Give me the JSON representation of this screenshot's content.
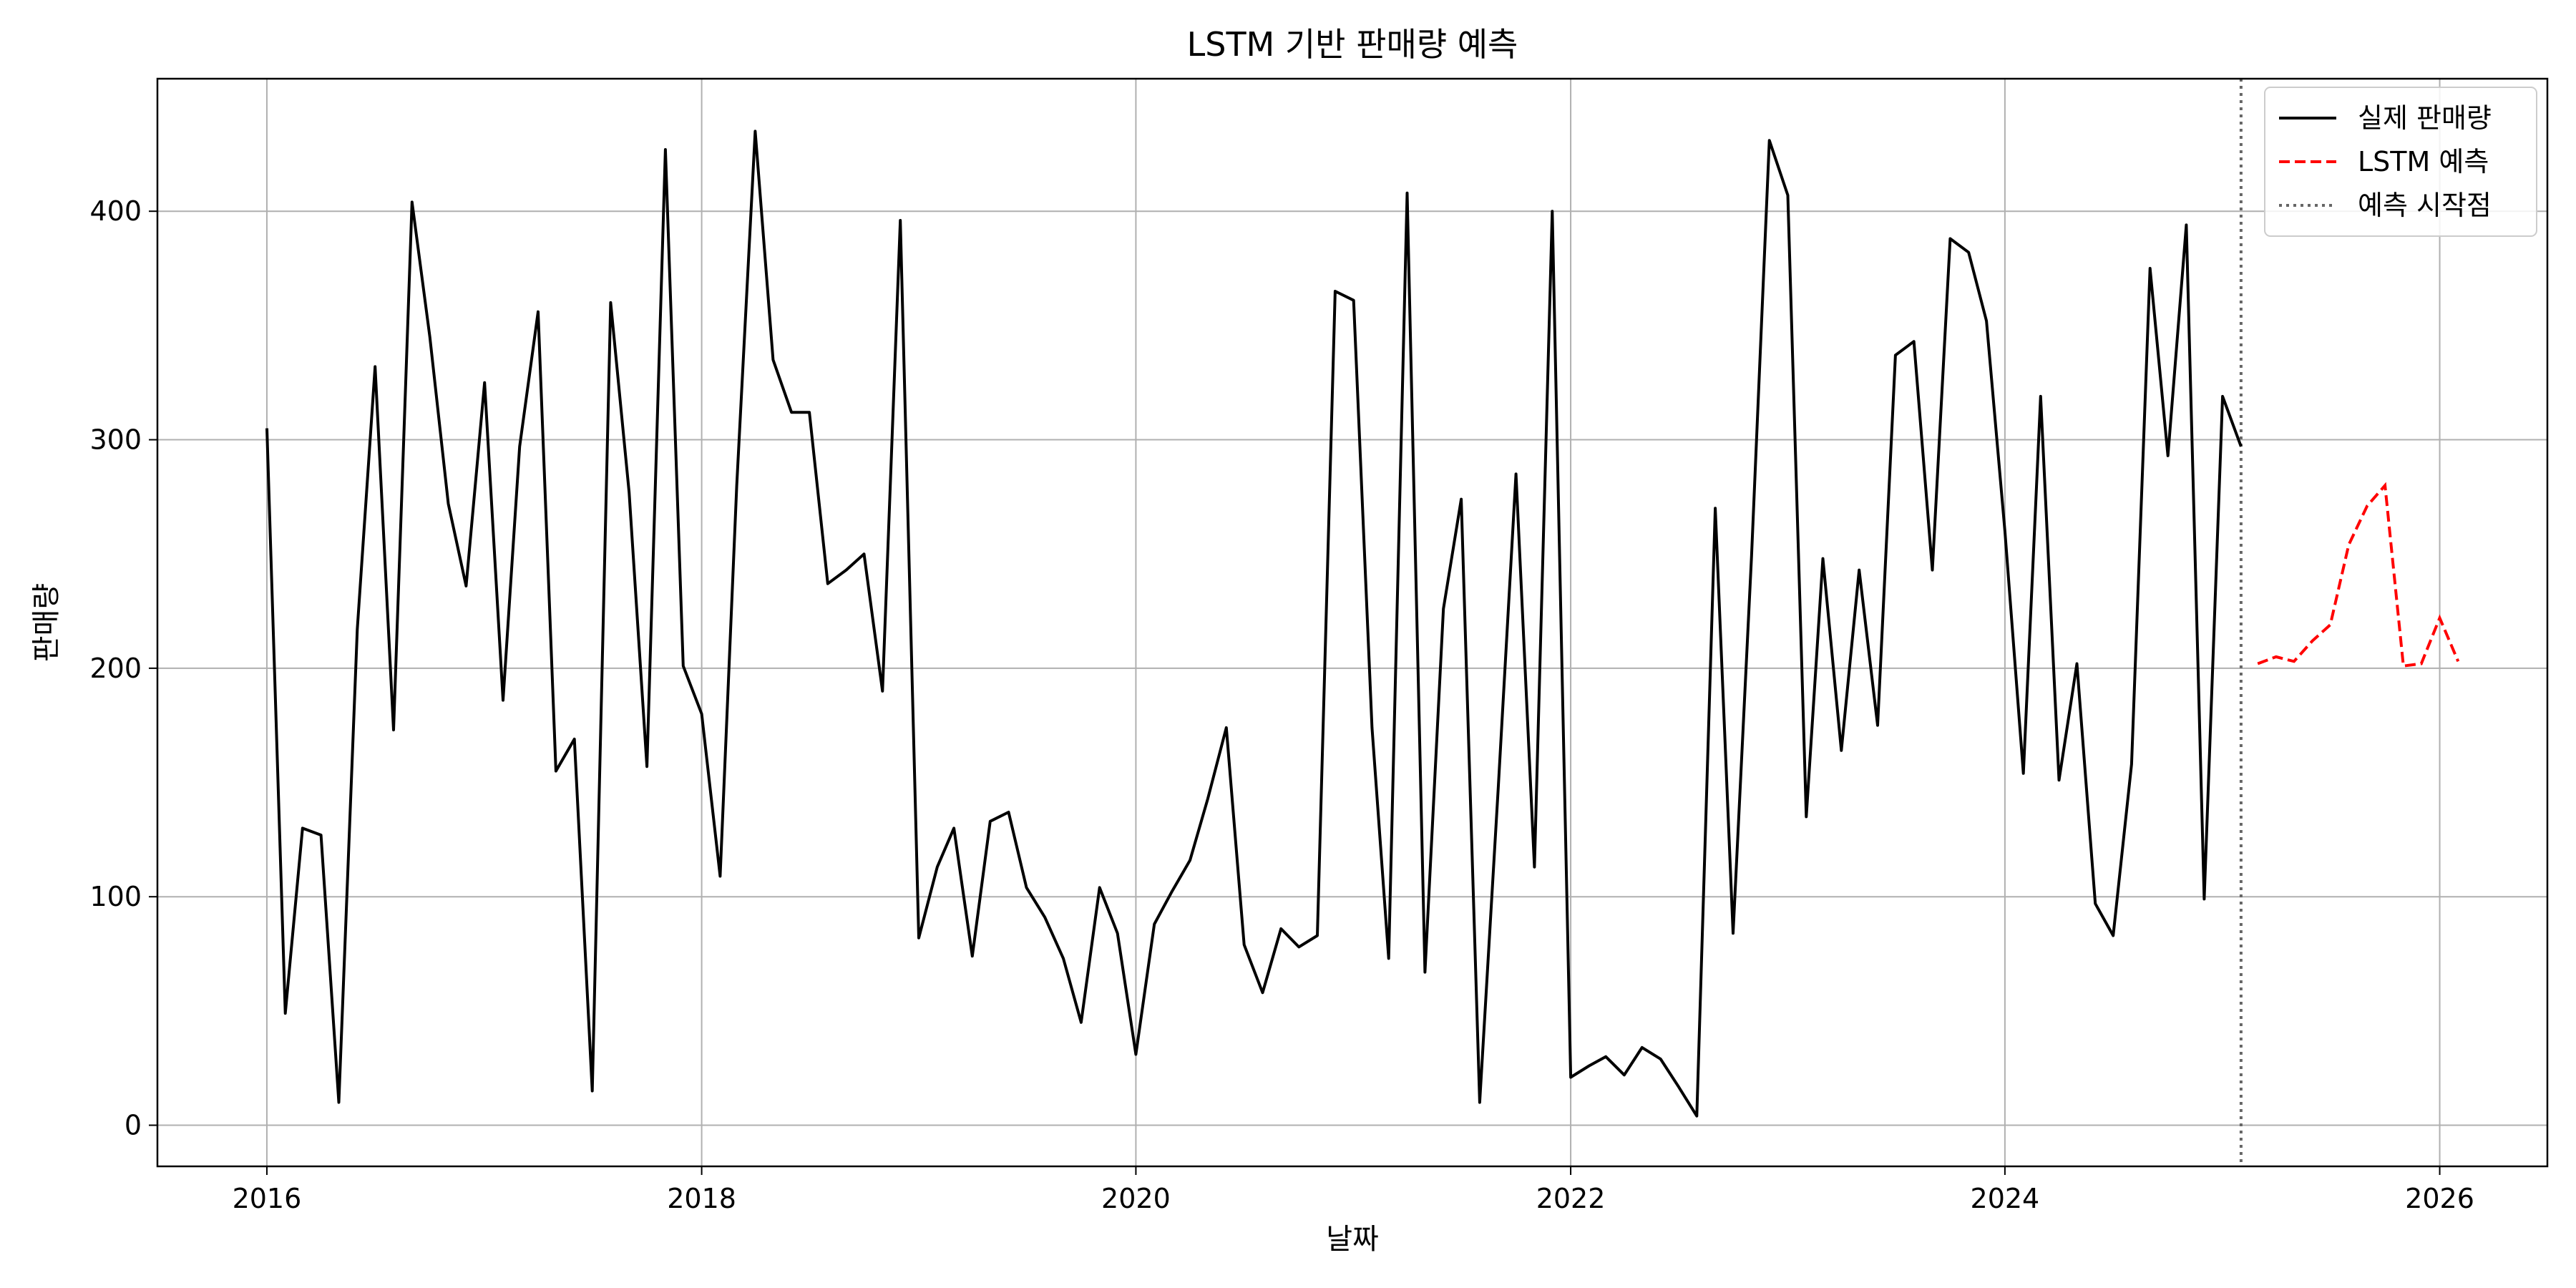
{
  "chart_data": {
    "type": "line",
    "title": "LSTM 기반 판매량 예측",
    "xlabel": "날짜",
    "ylabel": "판매량",
    "xlim": [
      "2015-07-01",
      "2026-07-01"
    ],
    "ylim": [
      -18,
      458
    ],
    "x_ticks": [
      {
        "date": "2016-01-01",
        "label": "2016"
      },
      {
        "date": "2018-01-01",
        "label": "2018"
      },
      {
        "date": "2020-01-01",
        "label": "2020"
      },
      {
        "date": "2022-01-01",
        "label": "2022"
      },
      {
        "date": "2024-01-01",
        "label": "2024"
      },
      {
        "date": "2026-01-01",
        "label": "2026"
      }
    ],
    "y_ticks": [
      0,
      100,
      200,
      300,
      400
    ],
    "grid": true,
    "legend_position": "top-right",
    "actual_start": "2016-01",
    "forecast_start": "2025-03",
    "forecast_start_line": "2025-02",
    "series": [
      {
        "name": "실제 판매량",
        "color": "#000000",
        "style": "solid",
        "values": [
          305,
          49,
          130,
          127,
          10,
          217,
          332,
          173,
          404,
          345,
          272,
          236,
          325,
          186,
          297,
          356,
          155,
          169,
          15,
          360,
          277,
          157,
          427,
          201,
          180,
          109,
          280,
          435,
          335,
          312,
          312,
          237,
          243,
          250,
          190,
          396,
          82,
          113,
          130,
          74,
          133,
          137,
          104,
          91,
          73,
          45,
          104,
          84,
          31,
          88,
          102,
          116,
          143,
          174,
          79,
          58,
          86,
          78,
          83,
          365,
          361,
          174,
          73,
          408,
          67,
          226,
          274,
          10,
          147,
          285,
          113,
          400,
          21,
          26,
          30,
          22,
          34,
          29,
          17,
          4,
          270,
          84,
          249,
          431,
          407,
          135,
          248,
          164,
          243,
          175,
          337,
          343,
          243,
          388,
          382,
          352,
          260,
          154,
          319,
          151,
          202,
          97,
          83,
          158,
          375,
          293,
          394,
          99,
          319,
          297
        ]
      },
      {
        "name": "LSTM 예측",
        "color": "#ff0000",
        "style": "dashed",
        "values": [
          202,
          205,
          203,
          212,
          219,
          254,
          271,
          280,
          201,
          202,
          222,
          203
        ]
      },
      {
        "name": "예측 시작점",
        "color": "#666666",
        "style": "dotted",
        "values": []
      }
    ]
  }
}
